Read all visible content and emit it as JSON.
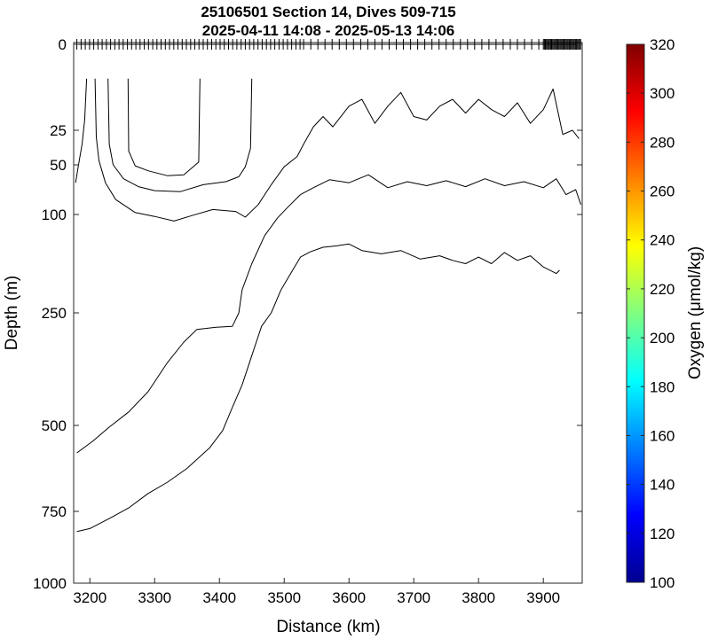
{
  "chart_data": {
    "type": "contour",
    "title_lines": [
      "25106501 Section 14, Dives 509-715",
      "2025-04-11 14:08 - 2025-05-13 14:06"
    ],
    "xlabel": "Distance (km)",
    "ylabel": "Depth (m)",
    "xlim": [
      3175,
      3960
    ],
    "x_ticks": [
      3200,
      3300,
      3400,
      3500,
      3600,
      3700,
      3800,
      3900
    ],
    "y_ticks": [
      0,
      25,
      50,
      100,
      250,
      500,
      750,
      1000
    ],
    "y_scale": "custom-stretched (upper depths expanded)",
    "colorbar": {
      "label": "Oxygen (μmol/kg)",
      "range": [
        100,
        320
      ],
      "ticks": [
        100,
        120,
        140,
        160,
        180,
        200,
        220,
        240,
        260,
        280,
        300,
        320
      ],
      "colormap": "jet"
    },
    "dive_markers_at_surface": true,
    "contour_lines": [
      {
        "name": "c1",
        "points": [
          [
            3195,
            10
          ],
          [
            3192,
            22
          ],
          [
            3188,
            35
          ],
          [
            3182,
            52
          ],
          [
            3178,
            68
          ]
        ]
      },
      {
        "name": "c2",
        "points": [
          [
            3208,
            10
          ],
          [
            3210,
            30
          ],
          [
            3214,
            47
          ],
          [
            3224,
            68
          ],
          [
            3240,
            85
          ],
          [
            3270,
            98
          ],
          [
            3300,
            103
          ],
          [
            3330,
            110
          ],
          [
            3360,
            101
          ],
          [
            3390,
            95
          ],
          [
            3425,
            97
          ],
          [
            3440,
            104
          ],
          [
            3460,
            90
          ],
          [
            3480,
            70
          ],
          [
            3500,
            52
          ],
          [
            3520,
            44
          ],
          [
            3530,
            35
          ],
          [
            3545,
            24
          ],
          [
            3560,
            21
          ],
          [
            3575,
            24
          ],
          [
            3600,
            18
          ],
          [
            3620,
            16
          ],
          [
            3640,
            23
          ],
          [
            3660,
            18
          ],
          [
            3680,
            14
          ],
          [
            3700,
            21
          ],
          [
            3720,
            22
          ],
          [
            3740,
            18
          ],
          [
            3760,
            16
          ],
          [
            3780,
            20
          ],
          [
            3800,
            16
          ],
          [
            3820,
            19
          ],
          [
            3840,
            21
          ],
          [
            3860,
            17
          ],
          [
            3880,
            23
          ],
          [
            3900,
            19
          ],
          [
            3915,
            13
          ],
          [
            3930,
            28
          ],
          [
            3945,
            25
          ],
          [
            3955,
            31
          ]
        ]
      },
      {
        "name": "c3",
        "points": [
          [
            3228,
            10
          ],
          [
            3230,
            35
          ],
          [
            3236,
            50
          ],
          [
            3252,
            64
          ],
          [
            3275,
            72
          ],
          [
            3300,
            76
          ],
          [
            3340,
            77
          ],
          [
            3375,
            70
          ],
          [
            3410,
            67
          ],
          [
            3430,
            62
          ],
          [
            3440,
            52
          ],
          [
            3448,
            38
          ],
          [
            3450,
            10
          ]
        ]
      },
      {
        "name": "c4",
        "points": [
          [
            3259,
            10
          ],
          [
            3260,
            40
          ],
          [
            3270,
            51
          ],
          [
            3290,
            56
          ],
          [
            3320,
            61
          ],
          [
            3345,
            60
          ],
          [
            3368,
            48
          ],
          [
            3370,
            10
          ]
        ]
      },
      {
        "name": "c5",
        "points": [
          [
            3180,
            580
          ],
          [
            3205,
            545
          ],
          [
            3230,
            505
          ],
          [
            3260,
            470
          ],
          [
            3290,
            425
          ],
          [
            3320,
            360
          ],
          [
            3345,
            315
          ],
          [
            3365,
            287
          ],
          [
            3395,
            282
          ],
          [
            3420,
            280
          ],
          [
            3430,
            250
          ],
          [
            3435,
            215
          ],
          [
            3450,
            175
          ],
          [
            3470,
            132
          ],
          [
            3490,
            105
          ],
          [
            3505,
            93
          ],
          [
            3525,
            80
          ],
          [
            3545,
            73
          ],
          [
            3570,
            65
          ],
          [
            3600,
            68
          ],
          [
            3630,
            60
          ],
          [
            3660,
            73
          ],
          [
            3690,
            67
          ],
          [
            3720,
            71
          ],
          [
            3750,
            66
          ],
          [
            3780,
            72
          ],
          [
            3810,
            64
          ],
          [
            3840,
            71
          ],
          [
            3870,
            67
          ],
          [
            3900,
            73
          ],
          [
            3920,
            64
          ],
          [
            3935,
            80
          ],
          [
            3950,
            75
          ],
          [
            3958,
            90
          ]
        ]
      },
      {
        "name": "c6",
        "points": [
          [
            3180,
            820
          ],
          [
            3200,
            810
          ],
          [
            3230,
            775
          ],
          [
            3260,
            740
          ],
          [
            3290,
            698
          ],
          [
            3320,
            665
          ],
          [
            3350,
            625
          ],
          [
            3385,
            565
          ],
          [
            3405,
            515
          ],
          [
            3420,
            460
          ],
          [
            3435,
            410
          ],
          [
            3450,
            345
          ],
          [
            3465,
            280
          ],
          [
            3480,
            250
          ],
          [
            3495,
            215
          ],
          [
            3510,
            190
          ],
          [
            3525,
            165
          ],
          [
            3540,
            157
          ],
          [
            3560,
            150
          ],
          [
            3580,
            148
          ],
          [
            3600,
            145
          ],
          [
            3620,
            155
          ],
          [
            3650,
            160
          ],
          [
            3680,
            155
          ],
          [
            3710,
            168
          ],
          [
            3740,
            163
          ],
          [
            3760,
            170
          ],
          [
            3780,
            175
          ],
          [
            3800,
            165
          ],
          [
            3820,
            175
          ],
          [
            3840,
            158
          ],
          [
            3860,
            170
          ],
          [
            3880,
            163
          ],
          [
            3900,
            180
          ],
          [
            3920,
            190
          ],
          [
            3925,
            185
          ]
        ]
      }
    ]
  }
}
